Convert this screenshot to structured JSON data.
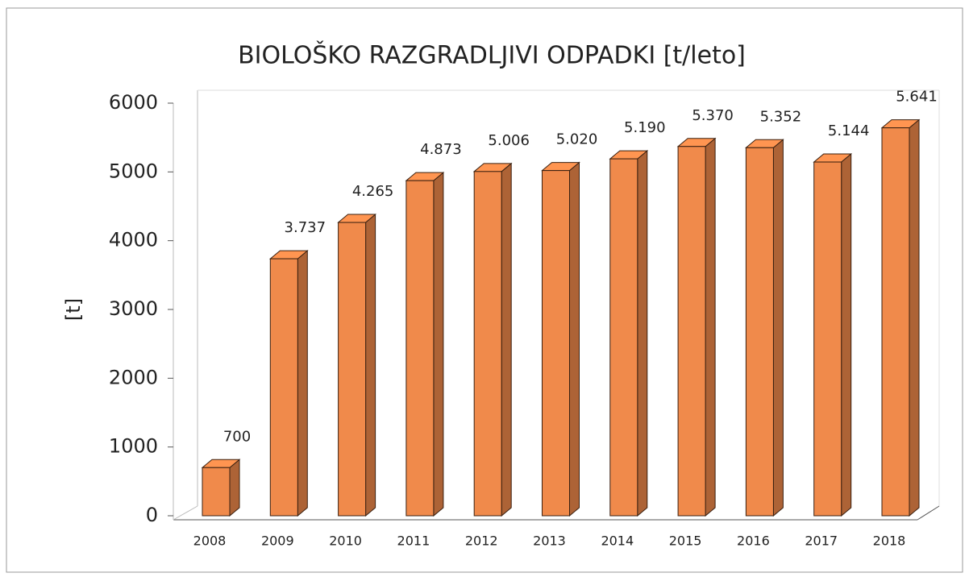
{
  "chart_data": {
    "type": "bar3d",
    "title": "BIOLOŠKO RAZGRADLJIVI ODPADKI [t/leto]",
    "y_label": "[t]",
    "categories": [
      "2008",
      "2009",
      "2010",
      "2011",
      "2012",
      "2013",
      "2014",
      "2015",
      "2016",
      "2017",
      "2018"
    ],
    "values": [
      700,
      3737,
      4265,
      4873,
      5006,
      5020,
      5190,
      5370,
      5352,
      5144,
      5641
    ],
    "value_labels": [
      "700",
      "3.737",
      "4.265",
      "4.873",
      "5.006",
      "5.020",
      "5.190",
      "5.370",
      "5.352",
      "5.144",
      "5.641"
    ],
    "color": "#f08a4b",
    "ylim": [
      0,
      6000
    ],
    "yticks": [
      0,
      1000,
      2000,
      3000,
      4000,
      5000,
      6000
    ]
  }
}
